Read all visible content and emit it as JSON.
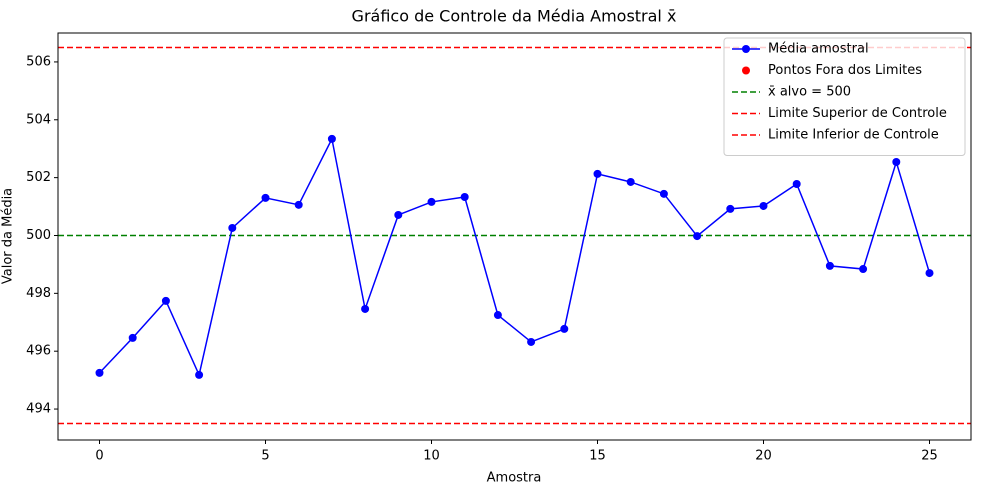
{
  "chart_data": {
    "type": "line",
    "title": "Gráfico de Controle da Média Amostral x̄",
    "x_label": "Amostra",
    "y_label": "Valor da Média",
    "x": [
      0,
      1,
      2,
      3,
      4,
      5,
      6,
      7,
      8,
      9,
      10,
      11,
      12,
      13,
      14,
      15,
      16,
      17,
      18,
      19,
      20,
      21,
      22,
      23,
      24,
      25
    ],
    "series": [
      {
        "name": "Média amostral",
        "color": "#0000ff",
        "marker": true,
        "line": true,
        "values": [
          495.25,
          496.46,
          497.74,
          495.18,
          500.26,
          501.3,
          501.06,
          503.34,
          497.46,
          500.71,
          501.16,
          501.33,
          497.25,
          496.32,
          496.77,
          502.13,
          501.85,
          501.44,
          499.98,
          500.92,
          501.02,
          501.78,
          498.95,
          498.84,
          502.54,
          498.7
        ]
      },
      {
        "name": "Pontos Fora dos Limites",
        "color": "#ff0000",
        "marker": true,
        "line": false,
        "values": [
          null,
          null,
          null,
          null,
          null,
          null,
          null,
          null,
          null,
          null,
          null,
          null,
          null,
          null,
          null,
          null,
          null,
          null,
          null,
          null,
          null,
          null,
          null,
          null,
          null,
          null
        ]
      }
    ],
    "reference_lines": [
      {
        "name": "x̄ alvo = 500",
        "value": 500,
        "color": "#008000"
      },
      {
        "name": "Limite Superior de Controle",
        "value": 506.5,
        "color": "#ff0000"
      },
      {
        "name": "Limite Inferior de Controle",
        "value": 493.5,
        "color": "#ff0000"
      }
    ],
    "xlim": [
      -1.25,
      26.25
    ],
    "xticks": [
      0,
      5,
      10,
      15,
      20,
      25
    ],
    "ylim": [
      492.93,
      507.0
    ],
    "yticks": [
      494,
      496,
      498,
      500,
      502,
      504,
      506
    ],
    "legend": "upper right"
  }
}
